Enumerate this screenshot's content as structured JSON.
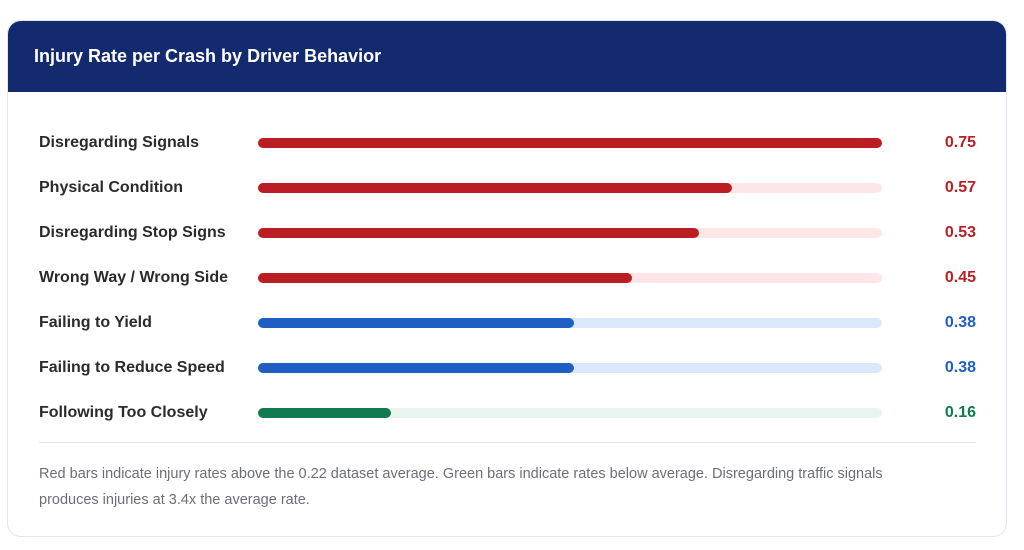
{
  "chart_data": {
    "type": "bar",
    "orientation": "horizontal",
    "title": "Injury Rate per Crash by Driver Behavior",
    "categories": [
      "Disregarding Signals",
      "Physical Condition",
      "Disregarding Stop Signs",
      "Wrong Way / Wrong Side",
      "Failing to Yield",
      "Failing to Reduce Speed",
      "Following Too Closely"
    ],
    "values": [
      0.75,
      0.57,
      0.53,
      0.45,
      0.38,
      0.38,
      0.16
    ],
    "value_labels": [
      "0.75",
      "0.57",
      "0.53",
      "0.45",
      "0.38",
      "0.38",
      "0.16"
    ],
    "levels": [
      "red",
      "red",
      "red",
      "red",
      "blue",
      "blue",
      "green"
    ],
    "xlim": [
      0,
      0.75
    ],
    "grid": false
  },
  "colors": {
    "header": "#132b6e",
    "red": {
      "fill": "#bb1e22",
      "track": "#fde6e7",
      "text": "#bb1e22"
    },
    "blue": {
      "fill": "#1f5fc4",
      "track": "#dce9fd",
      "text": "#1f5fc4"
    },
    "green": {
      "fill": "#107a52",
      "track": "#eaf4ef",
      "text": "#107a52"
    }
  },
  "footnote": "Red bars indicate injury rates above the 0.22 dataset average. Green bars indicate rates below average. Disregarding traffic signals produces injuries at 3.4x the average rate."
}
